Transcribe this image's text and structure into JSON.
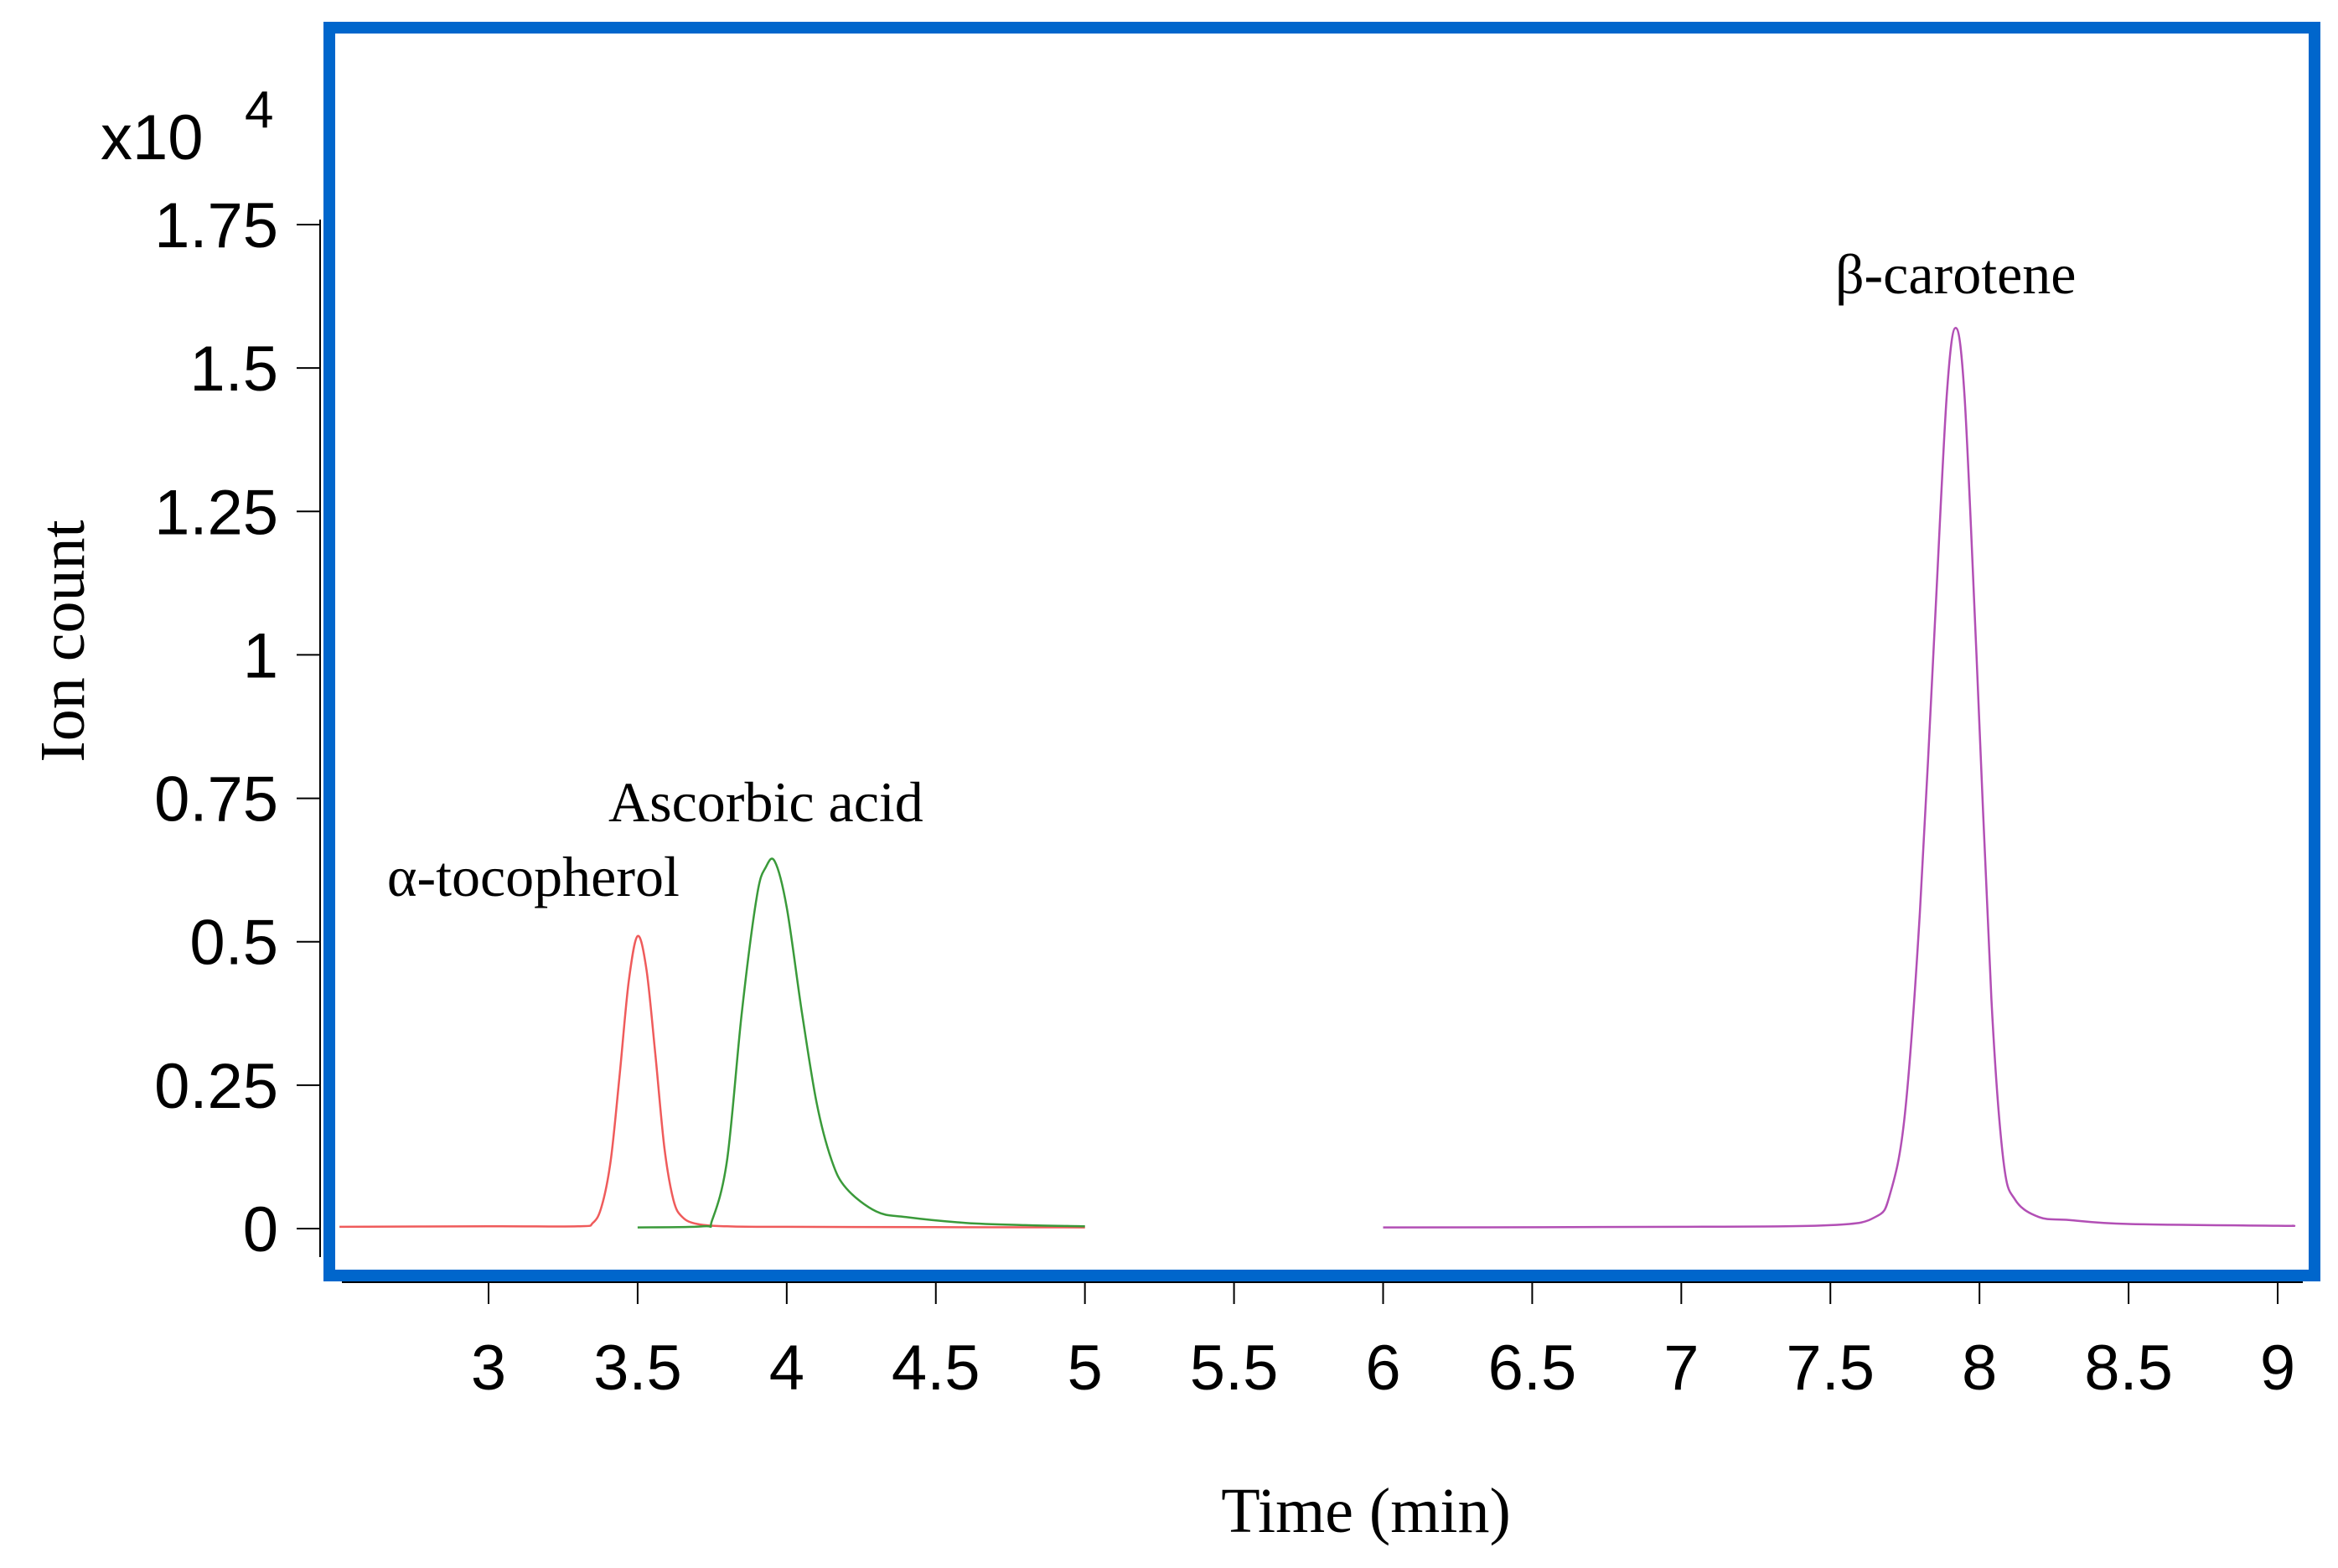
{
  "chart_data": {
    "type": "line",
    "xlabel": "Time (min)",
    "ylabel": "Ion count",
    "y_multiplier": {
      "base": "x10",
      "exponent": "4"
    },
    "xlim": [
      2.5,
      9.05
    ],
    "ylim": [
      -0.08,
      1.75
    ],
    "x_ticks": [
      3,
      3.5,
      4,
      4.5,
      5,
      5.5,
      6,
      6.5,
      7,
      7.5,
      8,
      8.5,
      9
    ],
    "x_tick_labels": [
      "3",
      "3.5",
      "4",
      "4.5",
      "5",
      "5.5",
      "6",
      "6.5",
      "7",
      "7.5",
      "8",
      "8.5",
      "9"
    ],
    "y_ticks": [
      0,
      0.25,
      0.5,
      0.75,
      1,
      1.25,
      1.5,
      1.75
    ],
    "y_tick_labels": [
      "0",
      "0.25",
      "0.5",
      "0.75",
      "1",
      "1.25",
      "1.5",
      "1.75"
    ],
    "grid": false,
    "frame_color": "#0066cc",
    "series": [
      {
        "color": "#ef5b5b",
        "x": [
          2.5,
          3.0,
          3.3,
          3.35,
          3.38,
          3.41,
          3.44,
          3.47,
          3.5,
          3.53,
          3.56,
          3.59,
          3.62,
          3.65,
          3.7,
          3.8,
          4.0,
          5.0
        ],
        "y": [
          0.003,
          0.004,
          0.004,
          0.01,
          0.04,
          0.12,
          0.27,
          0.43,
          0.51,
          0.45,
          0.3,
          0.14,
          0.05,
          0.02,
          0.008,
          0.004,
          0.003,
          0.002
        ]
      },
      {
        "color": "#3a9a3a",
        "x": [
          3.5,
          3.72,
          3.75,
          3.8,
          3.85,
          3.9,
          3.93,
          3.96,
          4.0,
          4.05,
          4.1,
          4.15,
          4.2,
          4.3,
          4.4,
          4.6,
          4.8,
          5.0
        ],
        "y": [
          0.002,
          0.004,
          0.015,
          0.12,
          0.38,
          0.58,
          0.63,
          0.64,
          0.56,
          0.38,
          0.22,
          0.12,
          0.07,
          0.03,
          0.02,
          0.01,
          0.006,
          0.004
        ]
      },
      {
        "color": "#b24fb5",
        "x": [
          6.0,
          7.0,
          7.5,
          7.65,
          7.7,
          7.75,
          7.8,
          7.85,
          7.89,
          7.92,
          7.95,
          7.99,
          8.04,
          8.08,
          8.12,
          8.2,
          8.3,
          8.5,
          9.0,
          9.05
        ],
        "y": [
          0.002,
          0.003,
          0.006,
          0.02,
          0.06,
          0.2,
          0.55,
          1.05,
          1.45,
          1.57,
          1.45,
          1.0,
          0.4,
          0.12,
          0.05,
          0.02,
          0.015,
          0.008,
          0.005,
          0.005
        ]
      }
    ],
    "annotations": [
      {
        "text": "α-tocopherol",
        "x": 3.15,
        "y": 0.58
      },
      {
        "text": "Ascorbic acid",
        "x": 3.93,
        "y": 0.71
      },
      {
        "text": "β-carotene",
        "x": 7.92,
        "y": 1.63
      }
    ]
  }
}
